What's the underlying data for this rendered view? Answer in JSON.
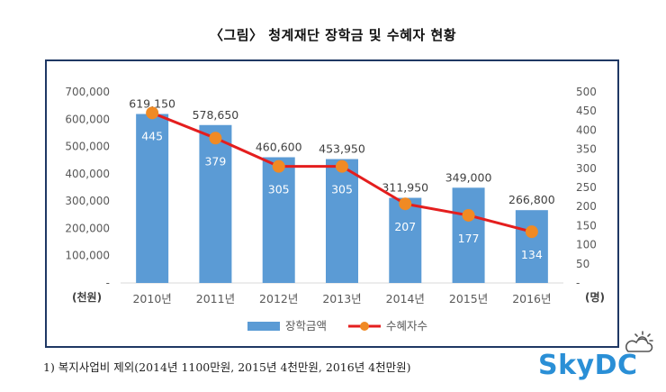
{
  "title": "〈그림〉 청계재단 장학금 및 수혜자 현황",
  "footnote": "1) 복지사업비 제외(2014년 1100만원, 2015년 4천만원, 2016년 4천만원)",
  "brand": {
    "text": "SkyDC",
    "icon": "sun-cloud-icon",
    "color": "#2a8fd6"
  },
  "chart_data": {
    "type": "bar+line",
    "categories": [
      "2010년",
      "2011년",
      "2012년",
      "2013년",
      "2014년",
      "2015년",
      "2016년"
    ],
    "series": [
      {
        "name": "장학금액",
        "type": "bar",
        "axis": "left",
        "color": "#5b9bd5",
        "values": [
          619150,
          578650,
          460600,
          453950,
          311950,
          349000,
          266800
        ],
        "labels": [
          "619,150",
          "578,650",
          "460,600",
          "453,950",
          "311,950",
          "349,000",
          "266,800"
        ]
      },
      {
        "name": "수혜자수",
        "type": "line",
        "axis": "right",
        "line_color": "#e41e1e",
        "marker_color": "#f08a24",
        "values": [
          445,
          379,
          305,
          305,
          207,
          177,
          134
        ],
        "labels": [
          "445",
          "379",
          "305",
          "305",
          "207",
          "177",
          "134"
        ]
      }
    ],
    "left_axis": {
      "unit_label": "(천원)",
      "range": [
        0,
        700000
      ],
      "ticks": [
        {
          "value": 700000,
          "label": "700,000"
        },
        {
          "value": 600000,
          "label": "600,000"
        },
        {
          "value": 500000,
          "label": "500,000"
        },
        {
          "value": 400000,
          "label": "400,000"
        },
        {
          "value": 300000,
          "label": "300,000"
        },
        {
          "value": 200000,
          "label": "200,000"
        },
        {
          "value": 100000,
          "label": "100,000"
        },
        {
          "value": 0,
          "label": "-"
        }
      ]
    },
    "right_axis": {
      "unit_label": "(명)",
      "range": [
        0,
        500
      ],
      "ticks": [
        {
          "value": 500,
          "label": "500"
        },
        {
          "value": 450,
          "label": "450"
        },
        {
          "value": 400,
          "label": "400"
        },
        {
          "value": 350,
          "label": "350"
        },
        {
          "value": 300,
          "label": "300"
        },
        {
          "value": 250,
          "label": "250"
        },
        {
          "value": 200,
          "label": "200"
        },
        {
          "value": 150,
          "label": "150"
        },
        {
          "value": 100,
          "label": "100"
        },
        {
          "value": 50,
          "label": "50"
        },
        {
          "value": 0,
          "label": "-"
        }
      ]
    },
    "grid": false,
    "legend_position": "bottom"
  }
}
